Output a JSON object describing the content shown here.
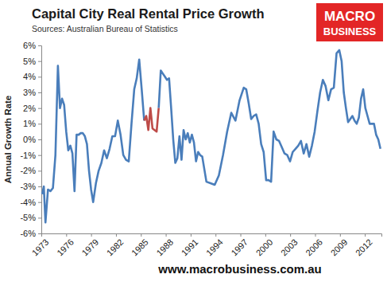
{
  "chart_data": {
    "type": "line",
    "title": "Capital City Real Rental Price Growth",
    "subtitle": "Sources: Australian Bureau of Statistics",
    "y_label": "Annual Growth Rate",
    "annotations": [
      "MACRO",
      "BUSINESS",
      "www.macrobusiness.com.au"
    ],
    "x": [
      1973.1,
      1973.3,
      1973.5,
      1973.8,
      1974.1,
      1974.4,
      1974.7,
      1975.0,
      1975.25,
      1975.5,
      1975.75,
      1976.0,
      1976.25,
      1976.5,
      1976.75,
      1977.0,
      1977.25,
      1977.5,
      1977.75,
      1978.0,
      1978.25,
      1978.5,
      1978.75,
      1979.0,
      1979.25,
      1979.58,
      1979.91,
      1980.24,
      1980.57,
      1980.9,
      1981.23,
      1981.56,
      1981.89,
      1982.22,
      1982.55,
      1982.88,
      1983.21,
      1983.54,
      1983.87,
      1984.2,
      1984.5,
      1984.8,
      1985.1,
      1985.4,
      1985.65,
      1985.9,
      1986.15,
      1986.4,
      1986.65,
      1986.9,
      1987.15,
      1987.4,
      1987.65,
      1987.9,
      1988.15,
      1988.4,
      1988.65,
      1988.9,
      1989.15,
      1989.4,
      1989.65,
      1989.9,
      1990.15,
      1990.4,
      1990.65,
      1990.9,
      1991.15,
      1991.4,
      1991.65,
      1991.9,
      1992.15,
      1992.4,
      1992.9,
      1993.4,
      1993.9,
      1994.4,
      1994.9,
      1995.4,
      1995.9,
      1996.4,
      1996.9,
      1997.4,
      1997.7,
      1998.0,
      1998.3,
      1998.6,
      1998.9,
      1999.2,
      1999.5,
      1999.8,
      2000.1,
      2000.4,
      2000.7,
      2001.0,
      2001.33,
      2001.66,
      2001.99,
      2002.32,
      2002.65,
      2002.98,
      2003.31,
      2003.64,
      2003.97,
      2004.3,
      2004.63,
      2004.96,
      2005.29,
      2005.62,
      2005.95,
      2006.28,
      2006.61,
      2006.94,
      2007.27,
      2007.6,
      2007.93,
      2008.26,
      2008.59,
      2008.92,
      2009.2,
      2009.46,
      2009.72,
      2009.98,
      2010.24,
      2010.5,
      2010.76,
      2011.02,
      2011.28,
      2011.54,
      2011.8,
      2012.06,
      2012.32,
      2012.58,
      2012.84,
      2013.1,
      2013.36,
      2013.62,
      2013.88
    ],
    "series": [
      {
        "color": "#4a7ebb",
        "values": [
          -3.5,
          -3.0,
          -5.3,
          -3.2,
          -3.3,
          -3.1,
          -1.0,
          4.7,
          2.0,
          2.6,
          2.2,
          0.5,
          -0.7,
          -0.4,
          -0.9,
          -3.3,
          0.3,
          0.3,
          0.4,
          0.4,
          0.2,
          -0.3,
          -2.0,
          -3.2,
          -4.0,
          -2.8,
          -2.0,
          -1.5,
          -0.7,
          -1.2,
          -0.6,
          0.2,
          0.2,
          1.2,
          0.3,
          -1.0,
          -1.3,
          -1.4,
          1.0,
          3.2,
          3.9,
          5.1,
          3.2,
          1.2,
          null,
          null,
          null,
          null,
          null,
          null,
          2.0,
          4.4,
          4.2,
          4.0,
          3.8,
          3.9,
          2.0,
          0.0,
          -1.5,
          -1.2,
          0.2,
          -1.3,
          0.6,
          0.0,
          0.4,
          -0.2,
          0.3,
          -0.2,
          -1.4,
          -0.8,
          -1.0,
          -1.1,
          -2.7,
          -2.8,
          -2.9,
          -2.3,
          -1.0,
          0.5,
          1.7,
          1.2,
          2.5,
          3.3,
          3.2,
          2.3,
          1.3,
          1.5,
          1.6,
          1.0,
          -0.3,
          -0.8,
          -2.6,
          -2.6,
          -2.7,
          0.5,
          0.0,
          -0.1,
          -0.5,
          -0.9,
          -1.0,
          -1.4,
          -0.8,
          -0.6,
          -0.4,
          -0.1,
          -0.9,
          -0.3,
          -1.1,
          -0.4,
          0.5,
          1.8,
          3.0,
          3.8,
          3.4,
          2.5,
          3.2,
          3.3,
          5.5,
          5.7,
          5.0,
          3.0,
          2.0,
          1.1,
          1.3,
          1.5,
          1.2,
          1.0,
          1.4,
          2.6,
          3.2,
          2.0,
          1.5,
          1.0,
          1.0,
          1.0,
          0.3,
          0.0,
          -0.6
        ]
      },
      {
        "color": "#be4b48",
        "values": [
          null,
          null,
          null,
          null,
          null,
          null,
          null,
          null,
          null,
          null,
          null,
          null,
          null,
          null,
          null,
          null,
          null,
          null,
          null,
          null,
          null,
          null,
          null,
          null,
          null,
          null,
          null,
          null,
          null,
          null,
          null,
          null,
          null,
          null,
          null,
          null,
          null,
          null,
          null,
          null,
          null,
          null,
          null,
          1.2,
          1.5,
          0.6,
          2.0,
          0.7,
          0.6,
          0.5,
          2.0,
          null,
          null,
          null,
          null,
          null,
          null,
          null,
          null,
          null,
          null,
          null,
          null,
          null,
          null,
          null,
          null,
          null,
          null,
          null,
          null,
          null,
          null,
          null,
          null,
          null,
          null,
          null,
          null,
          null,
          null,
          null,
          null,
          null,
          null,
          null,
          null,
          null,
          null,
          null,
          null,
          null,
          null,
          null,
          null,
          null,
          null,
          null,
          null,
          null,
          null,
          null,
          null,
          null,
          null,
          null,
          null,
          null,
          null,
          null,
          null,
          null,
          null,
          null,
          null,
          null,
          null,
          null,
          null,
          null,
          null,
          null,
          null,
          null,
          null,
          null,
          null,
          null,
          null,
          null,
          null,
          null,
          null,
          null,
          null,
          null,
          null
        ]
      }
    ],
    "xlim": [
      1973,
      2014
    ],
    "xticks": [
      1973,
      1976,
      1979,
      1982,
      1985,
      1988,
      1991,
      1994,
      1997,
      2000,
      2003,
      2006,
      2009,
      2012
    ],
    "ylim": [
      -6,
      6
    ],
    "yticks": [
      {
        "value": -6,
        "label": "-6%"
      },
      {
        "value": -5,
        "label": "-5%"
      },
      {
        "value": -4,
        "label": "-4%"
      },
      {
        "value": -3,
        "label": "-3%"
      },
      {
        "value": -2,
        "label": "-2%"
      },
      {
        "value": -1,
        "label": "-1%"
      },
      {
        "value": 0,
        "label": "0%"
      },
      {
        "value": 1,
        "label": "1%"
      },
      {
        "value": 2,
        "label": "2%"
      },
      {
        "value": 3,
        "label": "3%"
      },
      {
        "value": 4,
        "label": "4%"
      },
      {
        "value": 5,
        "label": "5%"
      },
      {
        "value": 6,
        "label": "6%"
      }
    ],
    "grid": false
  }
}
